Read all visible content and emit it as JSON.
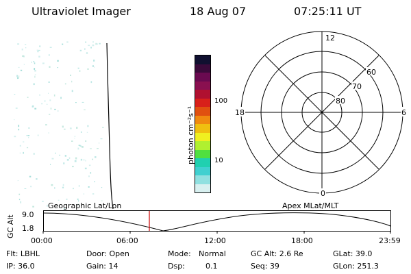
{
  "header": {
    "title": "Ultraviolet Imager",
    "date": "18 Aug 07",
    "time": "07:25:11 UT"
  },
  "colorbar": {
    "label": "photon cm⁻²s⁻¹",
    "ticks": [
      "100",
      "10"
    ],
    "colors": [
      "#101030",
      "#3a0a3a",
      "#6a0a50",
      "#8a1050",
      "#b01030",
      "#d8201a",
      "#e05010",
      "#f08a10",
      "#f0c010",
      "#f0f020",
      "#b0f030",
      "#50e040",
      "#20d0b0",
      "#40d0d0",
      "#90e0e0",
      "#d8f0f0"
    ]
  },
  "polar_plot": {
    "mlt_labels": {
      "top": "12",
      "bottom": "0",
      "left": "18",
      "right": "6"
    },
    "lat_labels": [
      "80",
      "70",
      "60"
    ]
  },
  "timeline": {
    "left_label": "Geographic Lat/Lon",
    "right_label": "Apex MLat/MLT",
    "axis_label": "GC Alt",
    "ymax": "9.0",
    "ymin": "1.8",
    "x_ticks": [
      "00:00",
      "06:00",
      "12:00",
      "18:00",
      "23:59"
    ],
    "marker_color": "#cc0000"
  },
  "info": {
    "flt": "Flt: LBHL",
    "ip": "IP: 36.0",
    "door": "Door: Open",
    "gain": "Gain: 14",
    "mode_label": "Mode:",
    "mode_value": "Normal",
    "dsp_label": "Dsp:",
    "dsp_value": "0.1",
    "gc_alt": "GC Alt: 2.6 Re",
    "seq": "Seq: 39",
    "glat": "GLat:  39.0",
    "glon": "GLon: 251.3"
  }
}
